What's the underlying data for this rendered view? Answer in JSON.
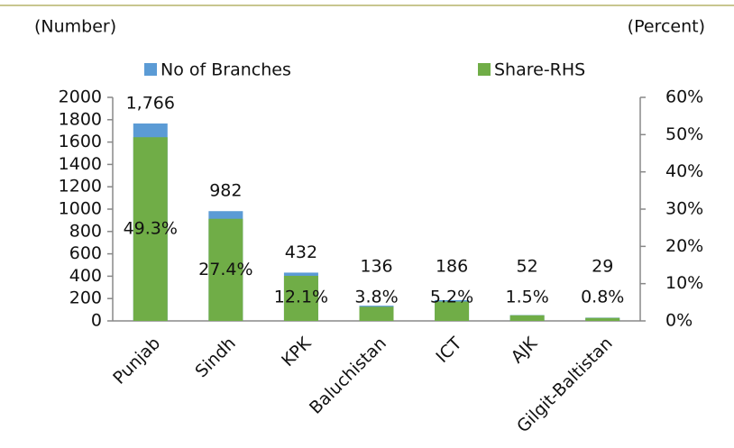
{
  "chart_data": {
    "type": "bar",
    "y_label": "(Number)",
    "y2_label": "(Percent)",
    "categories": [
      "Punjab",
      "Sindh",
      "KPK",
      "Baluchistan",
      "ICT",
      "AJK",
      "Gilgit-Baltistan"
    ],
    "series": [
      {
        "name": "No of Branches",
        "color": "#5b9bd5",
        "values": [
          1766,
          982,
          432,
          136,
          186,
          52,
          29
        ],
        "value_labels": [
          "1,766",
          "982",
          "432",
          "136",
          "186",
          "52",
          "29"
        ]
      },
      {
        "name": "Share-RHS",
        "color": "#70ad47",
        "axis": "y2",
        "values": [
          49.3,
          27.4,
          12.1,
          3.8,
          5.2,
          1.5,
          0.8
        ],
        "value_labels": [
          "49.3%",
          "27.4%",
          "12.1%",
          "3.8%",
          "5.2%",
          "1.5%",
          "0.8%"
        ]
      }
    ],
    "ylim": [
      0,
      2000
    ],
    "yticks": [
      0,
      200,
      400,
      600,
      800,
      1000,
      1200,
      1400,
      1600,
      1800,
      2000
    ],
    "y2lim": [
      0,
      60
    ],
    "y2ticks": [
      {
        "value": 0,
        "label": "0%"
      },
      {
        "value": 10,
        "label": "10%"
      },
      {
        "value": 20,
        "label": "20%"
      },
      {
        "value": 30,
        "label": "30%"
      },
      {
        "value": 40,
        "label": "40%"
      },
      {
        "value": 50,
        "label": "50%"
      },
      {
        "value": 60,
        "label": "60%"
      }
    ],
    "legend": "top"
  }
}
